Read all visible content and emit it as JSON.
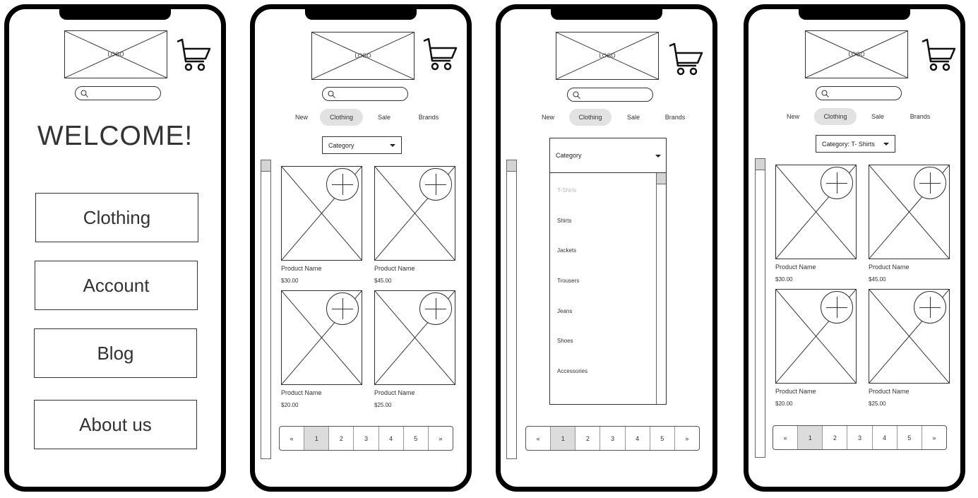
{
  "logo_text": "LOGO",
  "welcome_title": "WELCOME!",
  "home_menu": [
    "Clothing",
    "Account",
    "Blog",
    "About us"
  ],
  "tabs": [
    "New",
    "Clothing",
    "Sale",
    "Brands"
  ],
  "category": {
    "default_label": "Category",
    "selected_label": "Category: T- Shirts",
    "options": [
      "T-Shirts",
      "Shirts",
      "Jackets",
      "Trousers",
      "Jeans",
      "Shoes",
      "Accessories"
    ]
  },
  "products_unfiltered": [
    {
      "name": "Product Name",
      "price": "$30.00"
    },
    {
      "name": "Product Name",
      "price": "$45.00"
    },
    {
      "name": "Product Name",
      "price": "$20.00"
    },
    {
      "name": "Product Name",
      "price": "$25.00"
    }
  ],
  "products_filtered": [
    {
      "name": "Product Name",
      "price": "$30.00"
    },
    {
      "name": "Product Name",
      "price": "$45.00"
    },
    {
      "name": "Product Name",
      "price": "$20.00"
    },
    {
      "name": "Product Name",
      "price": "$25.00"
    }
  ],
  "pagination": {
    "prev": "«",
    "next": "»",
    "pages": [
      "1",
      "2",
      "3",
      "4",
      "5"
    ]
  },
  "colors": {
    "frame": "#000000",
    "active_tab": "#e2e2e2",
    "active_page": "#dcdcdc",
    "muted_option": "#bbbbbb"
  },
  "icons": {
    "cart": "shopping-cart-icon",
    "search": "magnifier-icon",
    "add": "plus-circle-icon",
    "placeholder": "image-placeholder-icon"
  }
}
